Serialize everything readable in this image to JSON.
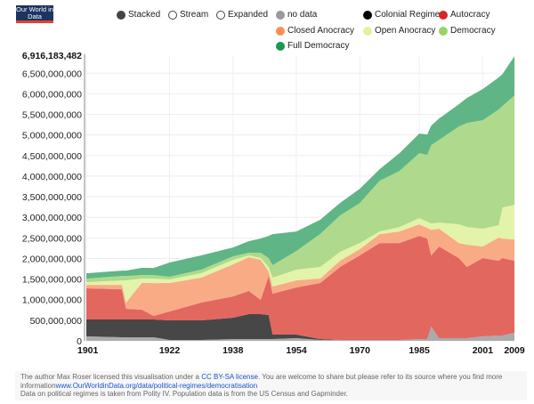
{
  "logo": {
    "text": "Our World in Data"
  },
  "controls": [
    {
      "label": "Stacked",
      "selected": true
    },
    {
      "label": "Stream",
      "selected": false
    },
    {
      "label": "Expanded",
      "selected": false
    }
  ],
  "legend": [
    {
      "label": "no data",
      "color": "#999999"
    },
    {
      "label": "Colonial Regime",
      "color": "#000000"
    },
    {
      "label": "Autocracy",
      "color": "#d62728"
    },
    {
      "label": "Closed Anocracy",
      "color": "#ff8c55"
    },
    {
      "label": "Open Anocracy",
      "color": "#dff59b"
    },
    {
      "label": "Democracy",
      "color": "#98d46a"
    },
    {
      "label": "Full Democracy",
      "color": "#1a9850"
    }
  ],
  "chart_data": {
    "type": "area",
    "stacked": true,
    "unit": "millions of people",
    "x": [
      1901,
      1910,
      1911,
      1915,
      1918,
      1922,
      1930,
      1938,
      1942,
      1945,
      1947,
      1948,
      1954,
      1960,
      1965,
      1970,
      1975,
      1980,
      1985,
      1987,
      1988,
      1990,
      1995,
      1997,
      2001,
      2005,
      2006,
      2009
    ],
    "series": [
      {
        "name": "no data",
        "color": "#ababab",
        "values": [
          108,
          86,
          86,
          86,
          86,
          22,
          22,
          43,
          43,
          43,
          43,
          43,
          65,
          22,
          22,
          22,
          22,
          22,
          43,
          43,
          346,
          65,
          65,
          65,
          108,
          130,
          130,
          194
        ]
      },
      {
        "name": "Colonial Regime",
        "color": "#474747",
        "values": [
          410,
          432,
          432,
          432,
          432,
          475,
          475,
          518,
          605,
          605,
          583,
          108,
          86,
          22,
          0,
          0,
          0,
          0,
          0,
          0,
          0,
          0,
          0,
          0,
          0,
          0,
          0,
          0
        ]
      },
      {
        "name": "Autocracy",
        "color": "#e2675f",
        "values": [
          756,
          734,
          259,
          238,
          86,
          216,
          432,
          518,
          562,
          346,
          950,
          994,
          1145,
          1361,
          1771,
          2052,
          2354,
          2354,
          2505,
          2441,
          1728,
          2225,
          1944,
          1728,
          1901,
          1814,
          1879,
          1750
        ]
      },
      {
        "name": "Closed Anocracy",
        "color": "#f9ab85",
        "values": [
          86,
          108,
          151,
          648,
          799,
          691,
          605,
          778,
          821,
          972,
          108,
          173,
          173,
          108,
          151,
          151,
          216,
          281,
          281,
          259,
          626,
          432,
          367,
          540,
          281,
          562,
          475,
          518
        ]
      },
      {
        "name": "Open Anocracy",
        "color": "#e3f3a9",
        "values": [
          65,
          108,
          540,
          108,
          108,
          86,
          108,
          108,
          43,
          43,
          108,
          216,
          259,
          281,
          216,
          151,
          65,
          108,
          151,
          151,
          151,
          151,
          454,
          432,
          432,
          302,
          756,
          842
        ]
      },
      {
        "name": "Democracy",
        "color": "#afd98c",
        "values": [
          86,
          108,
          108,
          86,
          86,
          65,
          86,
          86,
          65,
          130,
          216,
          302,
          454,
          799,
          886,
          972,
          1231,
          1361,
          1577,
          1620,
          1900,
          2009,
          2376,
          2527,
          2635,
          2808,
          2462,
          2657
        ]
      },
      {
        "name": "Full Democracy",
        "color": "#5fb585",
        "values": [
          130,
          130,
          130,
          173,
          173,
          346,
          346,
          216,
          281,
          346,
          540,
          756,
          475,
          346,
          302,
          346,
          281,
          432,
          475,
          497,
          475,
          518,
          540,
          605,
          756,
          778,
          778,
          950
        ]
      }
    ],
    "xlim": [
      1901,
      2009
    ],
    "ylim": [
      0,
      6916183482
    ],
    "x_ticks": [
      "1901",
      "1922",
      "1938",
      "1954",
      "1970",
      "1985",
      "2001",
      "2009"
    ],
    "y_ticks": [
      "0",
      "500,000,000",
      "1,000,000,000",
      "1,500,000,000",
      "2,000,000,000",
      "2,500,000,000",
      "3,000,000,000",
      "3,500,000,000",
      "4,000,000,000",
      "4,500,000,000",
      "5,000,000,000",
      "5,500,000,000",
      "6,000,000,000",
      "6,500,000,000"
    ],
    "y_max_label": "6,916,183,482",
    "grid": true
  },
  "footer": {
    "line1_pre": "The author Max Roser licensed this visualisation under a ",
    "license_link": "CC BY-SA license",
    "line1_post": ". You are welcome to share but please refer to its source where you find more information",
    "source_link": "www.OurWorldinData.org/data/political-regimes/democratisation",
    "line2": "Data on political regimes is taken from Polity IV. Population data is from the US Census and Gapminder."
  }
}
